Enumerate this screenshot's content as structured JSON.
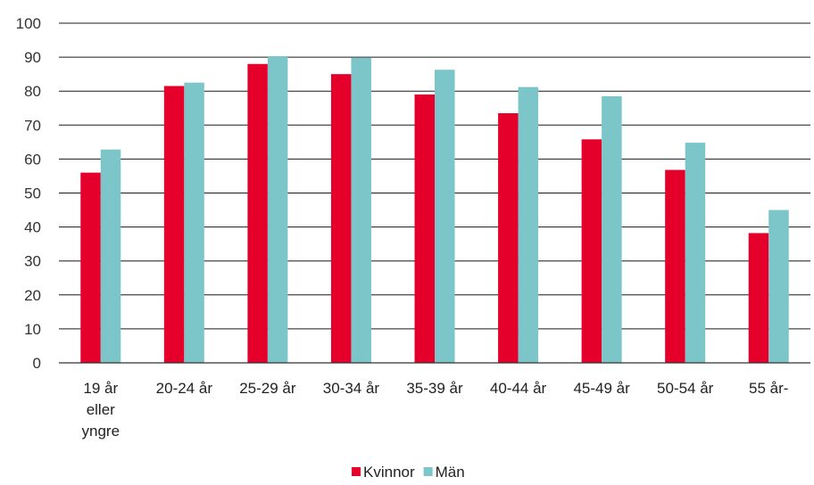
{
  "chart_data": {
    "type": "bar",
    "categories": [
      [
        "19 år",
        "eller",
        "yngre"
      ],
      [
        "20-24 år"
      ],
      [
        "25-29 år"
      ],
      [
        "30-34 år"
      ],
      [
        "35-39 år"
      ],
      [
        "40-44 år"
      ],
      [
        "45-49 år"
      ],
      [
        "50-54 år"
      ],
      [
        "55 år-"
      ]
    ],
    "series": [
      {
        "name": "Kvinnor",
        "color": "#e4002b",
        "values": [
          56,
          81.5,
          88,
          85,
          79,
          73.5,
          65.8,
          56.8,
          38.2
        ]
      },
      {
        "name": "Män",
        "color": "#7cc5c9",
        "values": [
          62.8,
          82.5,
          90.3,
          89.8,
          86.3,
          81.2,
          78.5,
          64.8,
          45
        ]
      }
    ],
    "ylim": [
      0,
      100
    ],
    "yticks": [
      0,
      10,
      20,
      30,
      40,
      50,
      60,
      70,
      80,
      90,
      100
    ],
    "grid": true,
    "legend": "bottom-center",
    "title": "",
    "xlabel": "",
    "ylabel": ""
  }
}
